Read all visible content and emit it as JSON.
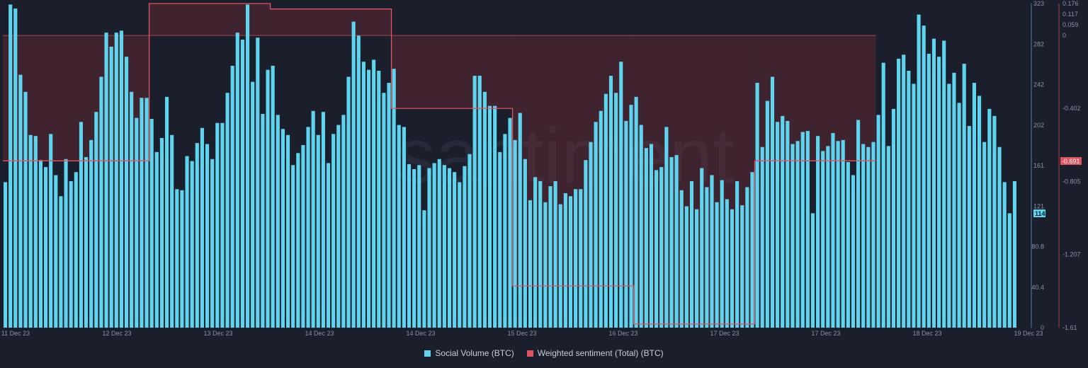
{
  "watermark": "santiment",
  "colors": {
    "volume": "#5ed4ee",
    "sentiment": "#e0545f",
    "sentiment_fill": "rgba(140, 50, 60, 0.32)",
    "background": "#1b1e2b"
  },
  "legend": {
    "volume_label": "Social Volume (BTC)",
    "sentiment_label": "Weighted sentiment (Total) (BTC)"
  },
  "badges": {
    "volume_last": "114",
    "sentiment_last": "-0.691"
  },
  "chart_data": {
    "type": "bar",
    "x_tick_labels": [
      "11 Dec 23",
      "12 Dec 23",
      "13 Dec 23",
      "14 Dec 23",
      "14 Dec 23",
      "15 Dec 23",
      "16 Dec 23",
      "17 Dec 23",
      "17 Dec 23",
      "18 Dec 23",
      "19 Dec 23"
    ],
    "left_axis": {
      "ticks": [
        "323",
        "282",
        "242",
        "202",
        "161",
        "121",
        "80.8",
        "40.4",
        "0"
      ],
      "ylim": [
        0,
        323
      ]
    },
    "right_axis": {
      "ticks": [
        "0.176",
        "0.117",
        "0.059",
        "0",
        "-0.402",
        "-0.805",
        "-1.207",
        "-1.61"
      ],
      "ylim": [
        -1.61,
        0.176
      ]
    },
    "series": [
      {
        "name": "Social Volume (BTC)",
        "kind": "bar",
        "values": [
          145,
          322,
          318,
          252,
          235,
          192,
          191,
          167,
          160,
          193,
          152,
          131,
          168,
          146,
          155,
          205,
          170,
          187,
          215,
          250,
          294,
          280,
          294,
          296,
          270,
          235,
          209,
          229,
          229,
          208,
          175,
          189,
          230,
          192,
          138,
          137,
          171,
          166,
          184,
          199,
          183,
          168,
          204,
          204,
          234,
          261,
          294,
          287,
          322,
          245,
          289,
          213,
          257,
          261,
          212,
          198,
          192,
          162,
          174,
          182,
          200,
          216,
          192,
          215,
          164,
          193,
          202,
          212,
          250,
          305,
          291,
          265,
          257,
          267,
          256,
          234,
          244,
          258,
          202,
          200,
          163,
          158,
          162,
          117,
          159,
          164,
          168,
          162,
          159,
          155,
          145,
          161,
          173,
          251,
          251,
          235,
          221,
          221,
          175,
          193,
          209,
          187,
          214,
          168,
          127,
          150,
          146,
          125,
          141,
          146,
          123,
          134,
          131,
          138,
          138,
          167,
          185,
          205,
          216,
          233,
          251,
          234,
          265,
          206,
          222,
          230,
          202,
          179,
          183,
          157,
          160,
          200,
          170,
          172,
          137,
          121,
          146,
          118,
          159,
          140,
          152,
          125,
          147,
          128,
          118,
          146,
          122,
          140,
          155,
          244,
          180,
          226,
          250,
          205,
          211,
          206,
          183,
          186,
          195,
          196,
          114,
          191,
          176,
          181,
          194,
          186,
          187,
          165,
          152,
          207,
          183,
          180,
          185,
          212,
          264,
          181,
          218,
          268,
          272,
          256,
          243,
          312,
          301,
          273,
          288,
          270,
          286,
          243,
          254,
          224,
          263,
          201,
          244,
          231,
          185,
          218,
          211,
          180,
          145,
          114,
          146
        ],
        "note_on_axis": "left"
      },
      {
        "name": "Weighted sentiment (Total) (BTC)",
        "kind": "step-line",
        "axis": "right",
        "points": [
          {
            "from_bar": 0,
            "to_bar": 29,
            "value": -0.691
          },
          {
            "from_bar": 29,
            "to_bar": 53,
            "value": 0.176
          },
          {
            "from_bar": 53,
            "to_bar": 77,
            "value": 0.146
          },
          {
            "from_bar": 77,
            "to_bar": 101,
            "value": -0.402
          },
          {
            "from_bar": 101,
            "to_bar": 125,
            "value": -1.38
          },
          {
            "from_bar": 125,
            "to_bar": 149,
            "value": -1.59
          },
          {
            "from_bar": 149,
            "to_bar": 173,
            "value": -0.691
          }
        ],
        "shaded_band_top_value": 0
      }
    ]
  }
}
